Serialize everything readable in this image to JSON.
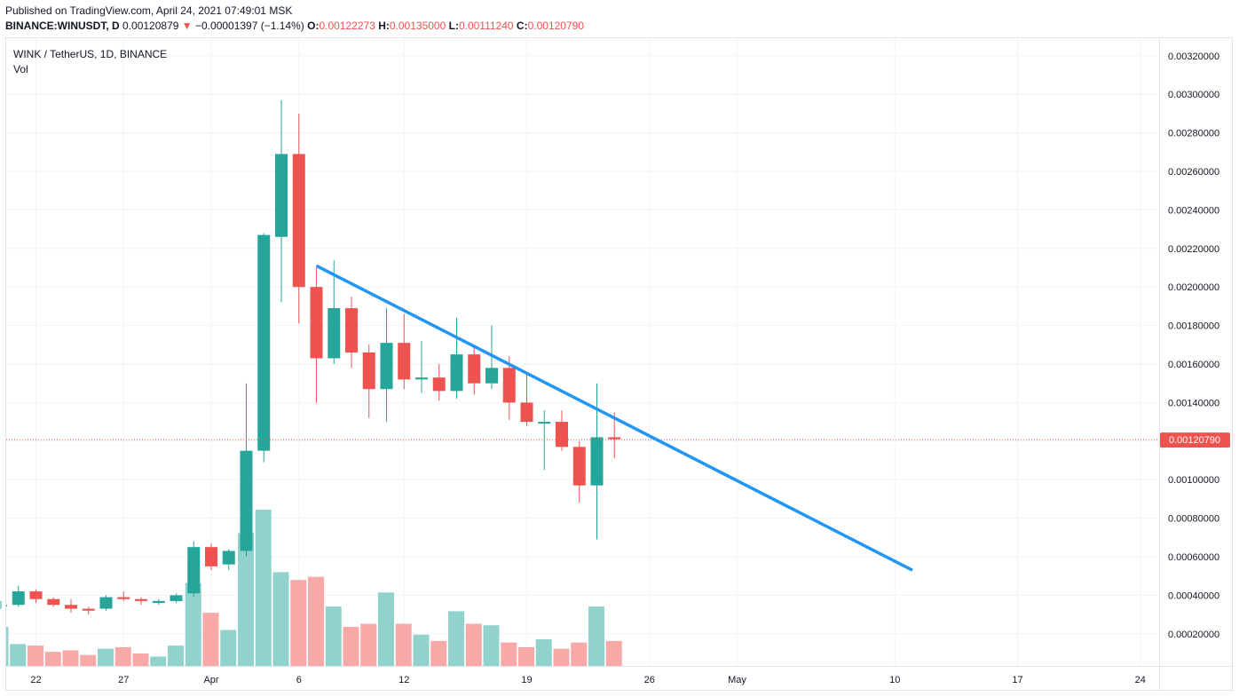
{
  "header": {
    "published": "Published on TradingView.com, April 24, 2021 07:49:01 MSK",
    "symbol": "BINANCE:WINUSDT, D",
    "last": "0.00120879",
    "change": "−0.00001397 (−1.14%)",
    "o_label": "O:",
    "o_value": "0.00122273",
    "h_label": "H:",
    "h_value": "0.00135000",
    "l_label": "L:",
    "l_value": "0.00111240",
    "c_label": "C:",
    "c_value": "0.00120790",
    "down_arrow": "▼"
  },
  "legend": {
    "title": "WINK / TetherUS, 1D, BINANCE",
    "volume": "Vol"
  },
  "colors": {
    "up": "#26a69a",
    "down": "#ef5350",
    "up_volume": "#92d2cc",
    "down_volume": "#f7a9a7",
    "trendline": "#2196f3",
    "grid": "#f0f3fa",
    "price_line": "#ef5350"
  },
  "chart_data": {
    "type": "candlestick",
    "title": "WINK / TetherUS, 1D, BINANCE",
    "x_tick_labels": [
      "22",
      "27",
      "Apr",
      "6",
      "12",
      "19",
      "26",
      "May",
      "10",
      "17",
      "24"
    ],
    "y_tick_labels": [
      "0.00020000",
      "0.00040000",
      "0.00060000",
      "0.00080000",
      "0.00100000",
      "0.00120000",
      "0.00140000",
      "0.00160000",
      "0.00180000",
      "0.00200000",
      "0.00220000",
      "0.00240000",
      "0.00260000",
      "0.00280000",
      "0.00300000",
      "0.00320000"
    ],
    "ylim": [
      0.0001,
      0.0033
    ],
    "grid": true,
    "last_price_label": "0.00120790",
    "last_price": 0.0012079,
    "candles": [
      {
        "date": "2021-03-20",
        "open": 0.00035,
        "high": 0.00037,
        "low": 0.00033,
        "close": 0.00035
      },
      {
        "date": "2021-03-21",
        "open": 0.00035,
        "high": 0.00045,
        "low": 0.00034,
        "close": 0.00042
      },
      {
        "date": "2021-03-22",
        "open": 0.00042,
        "high": 0.00043,
        "low": 0.00036,
        "close": 0.00038
      },
      {
        "date": "2021-03-23",
        "open": 0.00038,
        "high": 0.00039,
        "low": 0.00034,
        "close": 0.00035
      },
      {
        "date": "2021-03-24",
        "open": 0.00035,
        "high": 0.00038,
        "low": 0.00031,
        "close": 0.00033
      },
      {
        "date": "2021-03-25",
        "open": 0.00033,
        "high": 0.00034,
        "low": 0.0003,
        "close": 0.00032
      },
      {
        "date": "2021-03-26",
        "open": 0.00033,
        "high": 0.0004,
        "low": 0.00032,
        "close": 0.00039
      },
      {
        "date": "2021-03-27",
        "open": 0.00039,
        "high": 0.00042,
        "low": 0.00037,
        "close": 0.00038
      },
      {
        "date": "2021-03-28",
        "open": 0.00038,
        "high": 0.00039,
        "low": 0.00035,
        "close": 0.00037
      },
      {
        "date": "2021-03-29",
        "open": 0.00036,
        "high": 0.00038,
        "low": 0.00035,
        "close": 0.00037
      },
      {
        "date": "2021-03-30",
        "open": 0.00037,
        "high": 0.00041,
        "low": 0.00036,
        "close": 0.0004
      },
      {
        "date": "2021-03-31",
        "open": 0.00041,
        "high": 0.00068,
        "low": 0.00039,
        "close": 0.00065
      },
      {
        "date": "2021-04-01",
        "open": 0.00065,
        "high": 0.00067,
        "low": 0.00053,
        "close": 0.00055
      },
      {
        "date": "2021-04-02",
        "open": 0.00056,
        "high": 0.00064,
        "low": 0.00053,
        "close": 0.00063
      },
      {
        "date": "2021-04-03",
        "open": 0.00063,
        "high": 0.0015,
        "low": 0.0006,
        "close": 0.00115
      },
      {
        "date": "2021-04-04",
        "open": 0.00115,
        "high": 0.00228,
        "low": 0.00109,
        "close": 0.00227
      },
      {
        "date": "2021-04-05",
        "open": 0.00226,
        "high": 0.00297,
        "low": 0.00192,
        "close": 0.00269
      },
      {
        "date": "2021-04-06",
        "open": 0.00269,
        "high": 0.0029,
        "low": 0.00181,
        "close": 0.002
      },
      {
        "date": "2021-04-07",
        "open": 0.002,
        "high": 0.0021,
        "low": 0.0014,
        "close": 0.00163
      },
      {
        "date": "2021-04-08",
        "open": 0.00163,
        "high": 0.00214,
        "low": 0.0016,
        "close": 0.00189
      },
      {
        "date": "2021-04-09",
        "open": 0.00189,
        "high": 0.00195,
        "low": 0.00158,
        "close": 0.00166
      },
      {
        "date": "2021-04-10",
        "open": 0.00166,
        "high": 0.0017,
        "low": 0.00132,
        "close": 0.00147
      },
      {
        "date": "2021-04-11",
        "open": 0.00147,
        "high": 0.00189,
        "low": 0.0013,
        "close": 0.00171
      },
      {
        "date": "2021-04-12",
        "open": 0.00171,
        "high": 0.00186,
        "low": 0.00147,
        "close": 0.00152
      },
      {
        "date": "2021-04-13",
        "open": 0.00152,
        "high": 0.00172,
        "low": 0.00145,
        "close": 0.00153
      },
      {
        "date": "2021-04-14",
        "open": 0.00153,
        "high": 0.0016,
        "low": 0.00141,
        "close": 0.00146
      },
      {
        "date": "2021-04-15",
        "open": 0.00146,
        "high": 0.00184,
        "low": 0.00142,
        "close": 0.00165
      },
      {
        "date": "2021-04-16",
        "open": 0.00165,
        "high": 0.0017,
        "low": 0.00144,
        "close": 0.0015
      },
      {
        "date": "2021-04-17",
        "open": 0.0015,
        "high": 0.0018,
        "low": 0.00147,
        "close": 0.00158
      },
      {
        "date": "2021-04-18",
        "open": 0.00158,
        "high": 0.00164,
        "low": 0.00131,
        "close": 0.0014
      },
      {
        "date": "2021-04-19",
        "open": 0.0014,
        "high": 0.00155,
        "low": 0.00128,
        "close": 0.0013
      },
      {
        "date": "2021-04-20",
        "open": 0.0013,
        "high": 0.00136,
        "low": 0.00105,
        "close": 0.0013
      },
      {
        "date": "2021-04-21",
        "open": 0.0013,
        "high": 0.00136,
        "low": 0.00115,
        "close": 0.00117
      },
      {
        "date": "2021-04-22",
        "open": 0.00117,
        "high": 0.0012,
        "low": 0.00088,
        "close": 0.00097
      },
      {
        "date": "2021-04-23",
        "open": 0.00097,
        "high": 0.0015,
        "low": 0.00069,
        "close": 0.00122
      },
      {
        "date": "2021-04-24",
        "open": 0.00122,
        "high": 0.00135,
        "low": 0.00111,
        "close": 0.00121
      }
    ],
    "volume_relative": [
      0.25,
      0.14,
      0.13,
      0.09,
      0.1,
      0.07,
      0.11,
      0.12,
      0.08,
      0.06,
      0.13,
      0.53,
      0.34,
      0.23,
      0.85,
      1.0,
      0.6,
      0.55,
      0.57,
      0.38,
      0.25,
      0.27,
      0.47,
      0.27,
      0.2,
      0.16,
      0.35,
      0.27,
      0.26,
      0.15,
      0.12,
      0.17,
      0.11,
      0.15,
      0.38,
      0.16
    ],
    "trendline": {
      "start": {
        "date": "2021-04-07",
        "value": 0.00211
      },
      "end": {
        "date": "2021-05-11",
        "value": 0.00053
      }
    }
  }
}
